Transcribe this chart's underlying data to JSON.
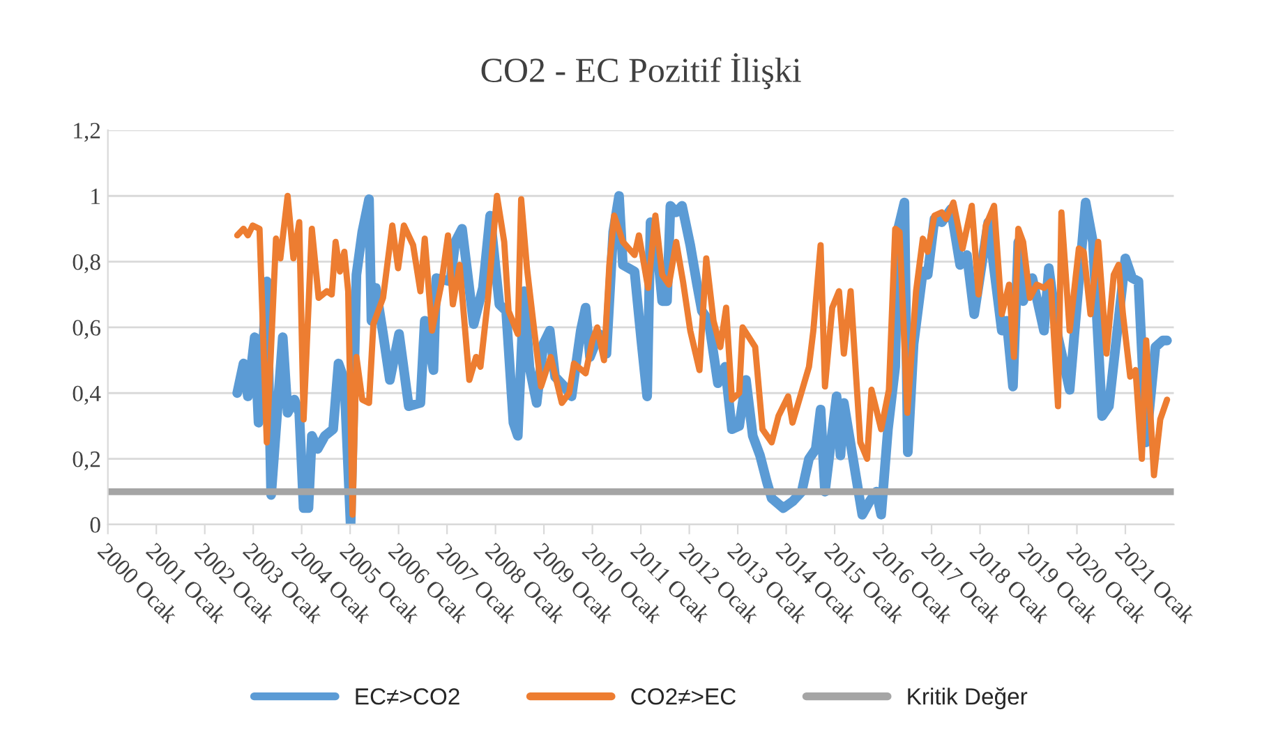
{
  "chart_data": {
    "type": "line",
    "title": "CO2 - EC Pozitif İlişki",
    "xlim": [
      2000,
      2022
    ],
    "xticks": [
      {
        "value": 2000,
        "label": "2000 Ocak"
      },
      {
        "value": 2001,
        "label": "2001 Ocak"
      },
      {
        "value": 2002,
        "label": "2002 Ocak"
      },
      {
        "value": 2003,
        "label": "2003 Ocak"
      },
      {
        "value": 2004,
        "label": "2004 Ocak"
      },
      {
        "value": 2005,
        "label": "2005 Ocak"
      },
      {
        "value": 2006,
        "label": "2006 Ocak"
      },
      {
        "value": 2007,
        "label": "2007 Ocak"
      },
      {
        "value": 2008,
        "label": "2008 Ocak"
      },
      {
        "value": 2009,
        "label": "2009 Ocak"
      },
      {
        "value": 2010,
        "label": "2010 Ocak"
      },
      {
        "value": 2011,
        "label": "2011 Ocak"
      },
      {
        "value": 2012,
        "label": "2012 Ocak"
      },
      {
        "value": 2013,
        "label": "2013 Ocak"
      },
      {
        "value": 2014,
        "label": "2014 Ocak"
      },
      {
        "value": 2015,
        "label": "2015 Ocak"
      },
      {
        "value": 2016,
        "label": "2016 Ocak"
      },
      {
        "value": 2017,
        "label": "2017 Ocak"
      },
      {
        "value": 2018,
        "label": "2018 Ocak"
      },
      {
        "value": 2019,
        "label": "2019 Ocak"
      },
      {
        "value": 2020,
        "label": "2020 Ocak"
      },
      {
        "value": 2021,
        "label": "2021 Ocak"
      }
    ],
    "ylim": [
      0,
      1.2
    ],
    "yticks": [
      0,
      {
        "value": 0.2,
        "label": "0,2"
      },
      {
        "value": 0.4,
        "label": "0,4"
      },
      {
        "value": 0.6,
        "label": "0,6"
      },
      {
        "value": 0.8,
        "label": "0,8"
      },
      1,
      {
        "value": 1.2,
        "label": "1,2"
      }
    ],
    "grid": "y",
    "legend": "bottom",
    "line_style": "solid",
    "marker": "none",
    "series": [
      {
        "name": "EC≠>CO2",
        "color": "#5b9bd5",
        "x": [
          2002.67,
          2002.8,
          2002.89,
          2003.03,
          2003.11,
          2003.28,
          2003.37,
          2003.61,
          2003.71,
          2003.85,
          2003.95,
          2004.04,
          2004.14,
          2004.21,
          2004.33,
          2004.48,
          2004.65,
          2004.76,
          2004.88,
          2005.01,
          2005.13,
          2005.25,
          2005.39,
          2005.44,
          2005.53,
          2005.68,
          2005.82,
          2006.01,
          2006.21,
          2006.45,
          2006.54,
          2006.72,
          2006.78,
          2007.07,
          2007.17,
          2007.31,
          2007.41,
          2007.55,
          2007.74,
          2007.89,
          2008.08,
          2008.22,
          2008.37,
          2008.46,
          2008.59,
          2008.7,
          2008.85,
          2008.99,
          2009.12,
          2009.23,
          2009.42,
          2009.57,
          2009.76,
          2009.86,
          2009.95,
          2010.14,
          2010.29,
          2010.43,
          2010.55,
          2010.63,
          2010.87,
          2011.01,
          2011.13,
          2011.2,
          2011.35,
          2011.44,
          2011.54,
          2011.61,
          2011.73,
          2011.85,
          2012.02,
          2012.16,
          2012.26,
          2012.4,
          2012.59,
          2012.74,
          2012.88,
          2013.03,
          2013.17,
          2013.31,
          2013.46,
          2013.6,
          2013.7,
          2013.94,
          2014.13,
          2014.32,
          2014.47,
          2014.61,
          2014.71,
          2014.8,
          2015.04,
          2015.12,
          2015.19,
          2015.38,
          2015.57,
          2015.72,
          2015.86,
          2015.96,
          2016.1,
          2016.25,
          2016.31,
          2016.44,
          2016.51,
          2016.63,
          2016.82,
          2016.92,
          2017.06,
          2017.21,
          2017.4,
          2017.59,
          2017.73,
          2017.88,
          2018.17,
          2018.45,
          2018.55,
          2018.68,
          2018.79,
          2018.89,
          2019.08,
          2019.32,
          2019.42,
          2019.61,
          2019.85,
          2020.18,
          2020.33,
          2020.52,
          2020.66,
          2021.0,
          2021.14,
          2021.27,
          2021.43,
          2021.62,
          2021.77,
          2021.86
        ],
        "values": [
          0.4,
          0.49,
          0.39,
          0.57,
          0.31,
          0.74,
          0.09,
          0.57,
          0.34,
          0.38,
          0.34,
          0.05,
          0.05,
          0.27,
          0.23,
          0.27,
          0.29,
          0.49,
          0.44,
          0.0,
          0.76,
          0.89,
          0.99,
          0.62,
          0.72,
          0.58,
          0.44,
          0.58,
          0.36,
          0.37,
          0.62,
          0.47,
          0.75,
          0.74,
          0.86,
          0.9,
          0.78,
          0.61,
          0.72,
          0.94,
          0.67,
          0.65,
          0.31,
          0.27,
          0.71,
          0.48,
          0.37,
          0.55,
          0.59,
          0.45,
          0.42,
          0.39,
          0.59,
          0.66,
          0.51,
          0.58,
          0.52,
          0.89,
          1.0,
          0.79,
          0.77,
          0.56,
          0.39,
          0.92,
          0.82,
          0.68,
          0.68,
          0.97,
          0.95,
          0.97,
          0.85,
          0.73,
          0.65,
          0.62,
          0.43,
          0.48,
          0.29,
          0.3,
          0.44,
          0.27,
          0.21,
          0.13,
          0.08,
          0.05,
          0.07,
          0.1,
          0.2,
          0.23,
          0.35,
          0.1,
          0.39,
          0.21,
          0.37,
          0.2,
          0.03,
          0.07,
          0.1,
          0.03,
          0.29,
          0.48,
          0.9,
          0.98,
          0.22,
          0.55,
          0.77,
          0.76,
          0.93,
          0.92,
          0.96,
          0.79,
          0.82,
          0.64,
          0.92,
          0.59,
          0.62,
          0.42,
          0.86,
          0.68,
          0.75,
          0.59,
          0.78,
          0.57,
          0.41,
          0.98,
          0.86,
          0.33,
          0.36,
          0.81,
          0.75,
          0.74,
          0.25,
          0.54,
          0.56,
          0.56
        ]
      },
      {
        "name": "CO2≠>EC",
        "color": "#ed7d31",
        "x": [
          2002.67,
          2002.8,
          2002.89,
          2002.99,
          2003.13,
          2003.28,
          2003.47,
          2003.56,
          2003.71,
          2003.83,
          2003.95,
          2004.04,
          2004.21,
          2004.35,
          2004.52,
          2004.62,
          2004.7,
          2004.79,
          2004.88,
          2004.96,
          2005.05,
          2005.13,
          2005.25,
          2005.39,
          2005.48,
          2005.68,
          2005.87,
          2005.99,
          2006.11,
          2006.3,
          2006.45,
          2006.54,
          2006.69,
          2006.88,
          2007.02,
          2007.12,
          2007.26,
          2007.46,
          2007.6,
          2007.69,
          2007.84,
          2008.03,
          2008.18,
          2008.27,
          2008.46,
          2008.53,
          2008.65,
          2008.8,
          2008.94,
          2009.14,
          2009.37,
          2009.52,
          2009.62,
          2009.86,
          2010.0,
          2010.1,
          2010.24,
          2010.35,
          2010.45,
          2010.63,
          2010.87,
          2010.96,
          2011.15,
          2011.3,
          2011.44,
          2011.58,
          2011.73,
          2011.87,
          2012.02,
          2012.21,
          2012.35,
          2012.5,
          2012.64,
          2012.76,
          2012.88,
          2013.03,
          2013.1,
          2013.36,
          2013.51,
          2013.7,
          2013.84,
          2014.04,
          2014.13,
          2014.27,
          2014.47,
          2014.56,
          2014.71,
          2014.8,
          2014.95,
          2015.09,
          2015.19,
          2015.33,
          2015.53,
          2015.67,
          2015.76,
          2015.96,
          2016.12,
          2016.25,
          2016.34,
          2016.5,
          2016.68,
          2016.82,
          2016.92,
          2017.06,
          2017.21,
          2017.3,
          2017.45,
          2017.64,
          2017.83,
          2017.97,
          2018.12,
          2018.29,
          2018.45,
          2018.6,
          2018.7,
          2018.79,
          2018.89,
          2019.03,
          2019.17,
          2019.32,
          2019.46,
          2019.61,
          2019.68,
          2019.85,
          2020.04,
          2020.14,
          2020.28,
          2020.44,
          2020.61,
          2020.76,
          2020.86,
          2020.95,
          2021.1,
          2021.21,
          2021.34,
          2021.43,
          2021.59,
          2021.72,
          2021.86
        ],
        "values": [
          0.88,
          0.9,
          0.88,
          0.91,
          0.9,
          0.25,
          0.87,
          0.81,
          1.0,
          0.81,
          0.92,
          0.32,
          0.9,
          0.69,
          0.71,
          0.7,
          0.86,
          0.77,
          0.83,
          0.71,
          0.03,
          0.51,
          0.38,
          0.37,
          0.61,
          0.69,
          0.91,
          0.78,
          0.91,
          0.85,
          0.71,
          0.87,
          0.59,
          0.73,
          0.88,
          0.67,
          0.79,
          0.44,
          0.51,
          0.48,
          0.68,
          1.0,
          0.86,
          0.65,
          0.58,
          0.99,
          0.78,
          0.59,
          0.42,
          0.51,
          0.37,
          0.4,
          0.49,
          0.46,
          0.56,
          0.6,
          0.5,
          0.79,
          0.94,
          0.86,
          0.82,
          0.88,
          0.72,
          0.94,
          0.76,
          0.73,
          0.86,
          0.74,
          0.59,
          0.47,
          0.81,
          0.62,
          0.54,
          0.66,
          0.38,
          0.4,
          0.6,
          0.54,
          0.29,
          0.25,
          0.33,
          0.39,
          0.31,
          0.38,
          0.48,
          0.59,
          0.85,
          0.42,
          0.66,
          0.71,
          0.52,
          0.71,
          0.25,
          0.2,
          0.41,
          0.29,
          0.41,
          0.9,
          0.89,
          0.34,
          0.71,
          0.87,
          0.83,
          0.94,
          0.95,
          0.93,
          0.98,
          0.84,
          0.97,
          0.7,
          0.91,
          0.97,
          0.64,
          0.73,
          0.51,
          0.9,
          0.86,
          0.69,
          0.73,
          0.72,
          0.74,
          0.36,
          0.95,
          0.59,
          0.84,
          0.83,
          0.64,
          0.86,
          0.52,
          0.76,
          0.79,
          0.64,
          0.45,
          0.47,
          0.2,
          0.56,
          0.15,
          0.32,
          0.38
        ]
      }
    ],
    "ref_lines": [
      {
        "axis": "y",
        "value": 0.1,
        "label": "Kritik Değer",
        "color": "#a5a5a5"
      }
    ]
  }
}
